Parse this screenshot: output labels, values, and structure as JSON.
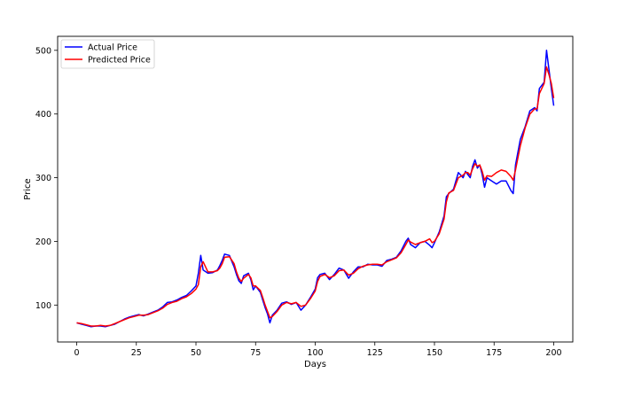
{
  "chart_data": {
    "type": "line",
    "xlabel": "Days",
    "ylabel": "Price",
    "xlim": [
      -8,
      208
    ],
    "ylim": [
      42,
      522
    ],
    "x_ticks": [
      0,
      25,
      50,
      75,
      100,
      125,
      150,
      175,
      200
    ],
    "y_ticks": [
      100,
      200,
      300,
      400,
      500
    ],
    "grid": false,
    "legend_position": "top-left",
    "colors": {
      "actual": "#0000ff",
      "predicted": "#ff0000"
    },
    "series": [
      {
        "name": "Actual Price",
        "color": "#0000ff",
        "points": [
          [
            0,
            72
          ],
          [
            2,
            70
          ],
          [
            4,
            68
          ],
          [
            6,
            66
          ],
          [
            8,
            67
          ],
          [
            10,
            67
          ],
          [
            12,
            66
          ],
          [
            14,
            68
          ],
          [
            16,
            70
          ],
          [
            18,
            74
          ],
          [
            20,
            78
          ],
          [
            22,
            81
          ],
          [
            24,
            83
          ],
          [
            26,
            85
          ],
          [
            28,
            83
          ],
          [
            30,
            86
          ],
          [
            32,
            89
          ],
          [
            34,
            92
          ],
          [
            36,
            97
          ],
          [
            38,
            104
          ],
          [
            40,
            105
          ],
          [
            42,
            108
          ],
          [
            44,
            112
          ],
          [
            46,
            115
          ],
          [
            48,
            122
          ],
          [
            50,
            130
          ],
          [
            51,
            150
          ],
          [
            52,
            178
          ],
          [
            53,
            155
          ],
          [
            55,
            150
          ],
          [
            57,
            151
          ],
          [
            59,
            155
          ],
          [
            60,
            162
          ],
          [
            61,
            170
          ],
          [
            62,
            180
          ],
          [
            64,
            178
          ],
          [
            66,
            160
          ],
          [
            67,
            148
          ],
          [
            68,
            138
          ],
          [
            69,
            134
          ],
          [
            70,
            146
          ],
          [
            72,
            150
          ],
          [
            73,
            140
          ],
          [
            74,
            124
          ],
          [
            75,
            130
          ],
          [
            77,
            120
          ],
          [
            78,
            108
          ],
          [
            79,
            96
          ],
          [
            80,
            86
          ],
          [
            81,
            72
          ],
          [
            82,
            84
          ],
          [
            84,
            92
          ],
          [
            86,
            103
          ],
          [
            88,
            105
          ],
          [
            90,
            101
          ],
          [
            92,
            104
          ],
          [
            94,
            92
          ],
          [
            96,
            100
          ],
          [
            98,
            112
          ],
          [
            100,
            125
          ],
          [
            101,
            143
          ],
          [
            102,
            148
          ],
          [
            104,
            150
          ],
          [
            106,
            140
          ],
          [
            108,
            148
          ],
          [
            110,
            158
          ],
          [
            112,
            155
          ],
          [
            114,
            142
          ],
          [
            116,
            152
          ],
          [
            118,
            160
          ],
          [
            120,
            160
          ],
          [
            122,
            164
          ],
          [
            124,
            163
          ],
          [
            126,
            163
          ],
          [
            128,
            161
          ],
          [
            130,
            170
          ],
          [
            132,
            172
          ],
          [
            134,
            175
          ],
          [
            136,
            185
          ],
          [
            138,
            200
          ],
          [
            139,
            205
          ],
          [
            140,
            195
          ],
          [
            142,
            190
          ],
          [
            144,
            198
          ],
          [
            146,
            200
          ],
          [
            148,
            194
          ],
          [
            149,
            190
          ],
          [
            150,
            198
          ],
          [
            152,
            215
          ],
          [
            154,
            240
          ],
          [
            155,
            270
          ],
          [
            156,
            275
          ],
          [
            158,
            282
          ],
          [
            160,
            308
          ],
          [
            162,
            300
          ],
          [
            163,
            310
          ],
          [
            164,
            305
          ],
          [
            165,
            300
          ],
          [
            166,
            318
          ],
          [
            167,
            328
          ],
          [
            168,
            315
          ],
          [
            169,
            320
          ],
          [
            170,
            305
          ],
          [
            171,
            285
          ],
          [
            172,
            300
          ],
          [
            174,
            295
          ],
          [
            176,
            290
          ],
          [
            178,
            295
          ],
          [
            180,
            295
          ],
          [
            182,
            280
          ],
          [
            183,
            275
          ],
          [
            184,
            320
          ],
          [
            186,
            360
          ],
          [
            188,
            380
          ],
          [
            190,
            405
          ],
          [
            192,
            410
          ],
          [
            193,
            405
          ],
          [
            194,
            440
          ],
          [
            196,
            450
          ],
          [
            197,
            500
          ],
          [
            198,
            470
          ],
          [
            199,
            440
          ],
          [
            200,
            413
          ]
        ]
      },
      {
        "name": "Predicted Price",
        "color": "#ff0000",
        "points": [
          [
            0,
            72
          ],
          [
            2,
            71
          ],
          [
            4,
            69
          ],
          [
            6,
            67
          ],
          [
            8,
            67
          ],
          [
            10,
            68
          ],
          [
            12,
            67
          ],
          [
            14,
            68
          ],
          [
            16,
            71
          ],
          [
            18,
            74
          ],
          [
            20,
            77
          ],
          [
            22,
            80
          ],
          [
            24,
            82
          ],
          [
            26,
            84
          ],
          [
            28,
            84
          ],
          [
            30,
            85
          ],
          [
            32,
            88
          ],
          [
            34,
            91
          ],
          [
            36,
            95
          ],
          [
            38,
            101
          ],
          [
            40,
            104
          ],
          [
            42,
            106
          ],
          [
            44,
            110
          ],
          [
            46,
            113
          ],
          [
            48,
            118
          ],
          [
            50,
            125
          ],
          [
            51,
            132
          ],
          [
            52,
            160
          ],
          [
            53,
            168
          ],
          [
            55,
            152
          ],
          [
            57,
            152
          ],
          [
            59,
            154
          ],
          [
            60,
            158
          ],
          [
            61,
            165
          ],
          [
            62,
            175
          ],
          [
            64,
            176
          ],
          [
            66,
            165
          ],
          [
            67,
            152
          ],
          [
            68,
            142
          ],
          [
            69,
            137
          ],
          [
            70,
            142
          ],
          [
            72,
            148
          ],
          [
            73,
            143
          ],
          [
            74,
            130
          ],
          [
            75,
            130
          ],
          [
            77,
            123
          ],
          [
            78,
            112
          ],
          [
            79,
            100
          ],
          [
            80,
            90
          ],
          [
            81,
            80
          ],
          [
            82,
            82
          ],
          [
            84,
            90
          ],
          [
            86,
            100
          ],
          [
            88,
            104
          ],
          [
            90,
            102
          ],
          [
            92,
            104
          ],
          [
            94,
            98
          ],
          [
            96,
            100
          ],
          [
            98,
            110
          ],
          [
            100,
            122
          ],
          [
            101,
            137
          ],
          [
            102,
            145
          ],
          [
            104,
            148
          ],
          [
            106,
            143
          ],
          [
            108,
            146
          ],
          [
            110,
            154
          ],
          [
            112,
            155
          ],
          [
            114,
            147
          ],
          [
            116,
            150
          ],
          [
            118,
            157
          ],
          [
            120,
            161
          ],
          [
            122,
            163
          ],
          [
            124,
            164
          ],
          [
            126,
            164
          ],
          [
            128,
            163
          ],
          [
            130,
            168
          ],
          [
            132,
            171
          ],
          [
            134,
            174
          ],
          [
            136,
            182
          ],
          [
            138,
            195
          ],
          [
            139,
            202
          ],
          [
            140,
            199
          ],
          [
            142,
            195
          ],
          [
            144,
            198
          ],
          [
            146,
            200
          ],
          [
            148,
            204
          ],
          [
            149,
            198
          ],
          [
            150,
            200
          ],
          [
            152,
            212
          ],
          [
            154,
            235
          ],
          [
            155,
            262
          ],
          [
            156,
            276
          ],
          [
            158,
            280
          ],
          [
            160,
            300
          ],
          [
            162,
            304
          ],
          [
            163,
            308
          ],
          [
            164,
            308
          ],
          [
            165,
            304
          ],
          [
            166,
            314
          ],
          [
            167,
            322
          ],
          [
            168,
            318
          ],
          [
            169,
            320
          ],
          [
            170,
            310
          ],
          [
            171,
            296
          ],
          [
            172,
            303
          ],
          [
            174,
            302
          ],
          [
            176,
            308
          ],
          [
            178,
            312
          ],
          [
            180,
            310
          ],
          [
            182,
            302
          ],
          [
            183,
            296
          ],
          [
            184,
            312
          ],
          [
            186,
            350
          ],
          [
            188,
            378
          ],
          [
            190,
            400
          ],
          [
            192,
            408
          ],
          [
            193,
            408
          ],
          [
            194,
            432
          ],
          [
            196,
            448
          ],
          [
            197,
            474
          ],
          [
            198,
            462
          ],
          [
            199,
            448
          ],
          [
            200,
            425
          ]
        ]
      }
    ]
  }
}
